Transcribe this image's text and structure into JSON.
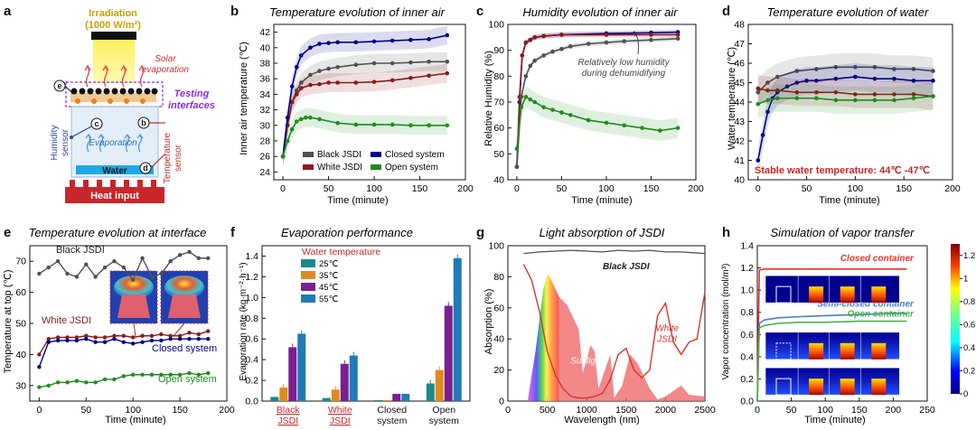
{
  "colors": {
    "black": "#505050",
    "red": "#8b1a1a",
    "blue": "#00008b",
    "green": "#1e8c1e",
    "orange": "#e8801e",
    "mag": "#d8332b",
    "purpleLabel": "#8a2be2",
    "c25": "#1a8a8a",
    "c35": "#e08a1e",
    "c45": "#7b1f8f",
    "c55": "#1f7ab8"
  },
  "panel_letters": [
    "a",
    "b",
    "c",
    "d",
    "e",
    "f",
    "g",
    "h"
  ],
  "panel_a": {
    "irradiation": "Irradiation",
    "irradiation_value": "(1000 W/m²)",
    "solar": "Solar",
    "evaporation_label": "evaporation",
    "testing": "Testing",
    "interfaces": "interfaces",
    "humidity": "Humidity",
    "sensor": "sensor",
    "temperature": "Temperature",
    "evaporation": "Evaporation",
    "water": "Water",
    "heat_input": "Heat input",
    "markers": [
      "e",
      "c",
      "b",
      "d"
    ]
  },
  "chart_data": [
    {
      "id": "b",
      "type": "line",
      "title": "Temperature evolution of inner air",
      "xlabel": "Time (minute)",
      "ylabel": "Inner air temperature (℃)",
      "xlim": [
        -10,
        200
      ],
      "ylim": [
        23,
        43
      ],
      "xticks": [
        0,
        50,
        100,
        150,
        200
      ],
      "yticks": [
        24,
        26,
        28,
        30,
        32,
        34,
        36,
        38,
        40,
        42
      ],
      "legend": [
        "Black JSDI",
        "White JSDI",
        "Closed system",
        "Open system"
      ],
      "series": [
        {
          "name": "Black JSDI",
          "color": "black",
          "x": [
            0,
            5,
            10,
            15,
            20,
            30,
            40,
            50,
            60,
            80,
            100,
            120,
            140,
            160,
            180
          ],
          "y": [
            26,
            30,
            33,
            34.5,
            35.5,
            36.5,
            37,
            37.3,
            37.5,
            37.8,
            38,
            38,
            38.1,
            38.2,
            38.2
          ]
        },
        {
          "name": "White JSDI",
          "color": "red",
          "x": [
            0,
            5,
            10,
            15,
            20,
            30,
            40,
            50,
            60,
            80,
            100,
            120,
            140,
            160,
            180
          ],
          "y": [
            26,
            30,
            33,
            34,
            34.8,
            35.2,
            35.3,
            35.5,
            35.5,
            35.5,
            35.6,
            35.8,
            36.1,
            36.4,
            36.7
          ]
        },
        {
          "name": "Closed system",
          "color": "blue",
          "x": [
            0,
            5,
            10,
            15,
            20,
            30,
            40,
            50,
            60,
            80,
            100,
            120,
            140,
            160,
            180
          ],
          "y": [
            26,
            31,
            35,
            37.5,
            39,
            40,
            40.5,
            40.6,
            40.7,
            40.7,
            40.8,
            40.9,
            41,
            41.1,
            41.6
          ]
        },
        {
          "name": "Open system",
          "color": "green",
          "x": [
            0,
            5,
            10,
            15,
            20,
            25,
            30,
            40,
            60,
            80,
            100,
            120,
            140,
            160,
            180
          ],
          "y": [
            26,
            28,
            29.5,
            30.5,
            30.8,
            31,
            31,
            30.8,
            30.3,
            30.1,
            30.1,
            30.1,
            30,
            30,
            30
          ]
        }
      ]
    },
    {
      "id": "c",
      "type": "line",
      "title": "Humidity evolution of inner air",
      "xlabel": "Time (minute)",
      "ylabel": "Relative Humidity (%)",
      "xlim": [
        -10,
        200
      ],
      "ylim": [
        40,
        100
      ],
      "xticks": [
        0,
        50,
        100,
        150,
        200
      ],
      "yticks": [
        40,
        50,
        60,
        70,
        80,
        90,
        100
      ],
      "annotation": [
        "Relatively low humidity",
        "during dehumidifying"
      ],
      "series": [
        {
          "name": "Closed system",
          "color": "blue",
          "x": [
            0,
            3,
            6,
            10,
            15,
            20,
            30,
            50,
            100,
            150,
            180
          ],
          "y": [
            45,
            70,
            88,
            93,
            94,
            95,
            95.5,
            96,
            96.5,
            96.8,
            97
          ]
        },
        {
          "name": "White JSDI",
          "color": "red",
          "x": [
            0,
            3,
            6,
            10,
            15,
            20,
            30,
            50,
            100,
            150,
            180
          ],
          "y": [
            45,
            72,
            88,
            93,
            94,
            95,
            95.5,
            96,
            96,
            96,
            96
          ]
        },
        {
          "name": "Black JSDI",
          "color": "black",
          "x": [
            0,
            5,
            10,
            15,
            20,
            30,
            40,
            50,
            60,
            80,
            100,
            120,
            150,
            180
          ],
          "y": [
            45,
            72,
            80,
            84,
            86,
            88,
            89.5,
            90.5,
            91.5,
            92.5,
            93,
            93.5,
            94,
            94.5
          ]
        },
        {
          "name": "Open system",
          "color": "green",
          "x": [
            0,
            5,
            10,
            15,
            20,
            30,
            40,
            50,
            60,
            80,
            100,
            120,
            140,
            160,
            180
          ],
          "y": [
            52,
            68,
            72,
            71,
            70,
            68,
            67,
            66,
            65,
            63,
            62,
            61,
            60,
            59,
            60
          ]
        }
      ]
    },
    {
      "id": "d",
      "type": "line",
      "title": "Temperature evolution of water",
      "xlabel": "Time (minute)",
      "ylabel": "Water temperature (℃)",
      "xlim": [
        -10,
        200
      ],
      "ylim": [
        40,
        48
      ],
      "xticks": [
        0,
        50,
        100,
        150,
        200
      ],
      "yticks": [
        40,
        41,
        42,
        43,
        44,
        45,
        46,
        47,
        48
      ],
      "note": "Stable water temperature: 44℃ -47℃",
      "series": [
        {
          "name": "Black JSDI",
          "color": "black",
          "x": [
            0,
            10,
            20,
            40,
            60,
            80,
            100,
            120,
            140,
            160,
            180
          ],
          "y": [
            44.5,
            45,
            45.3,
            45.6,
            45.7,
            45.8,
            45.8,
            45.8,
            45.7,
            45.7,
            45.6
          ]
        },
        {
          "name": "Closed system",
          "color": "blue",
          "x": [
            0,
            5,
            10,
            15,
            20,
            30,
            40,
            50,
            60,
            80,
            100,
            120,
            140,
            160,
            180
          ],
          "y": [
            41,
            42.3,
            43.5,
            44.2,
            44.5,
            44.8,
            45,
            45.1,
            45.1,
            45.2,
            45.3,
            45.2,
            45.2,
            45.1,
            45.1
          ]
        },
        {
          "name": "White JSDI",
          "color": "red",
          "x": [
            0,
            10,
            20,
            40,
            60,
            80,
            100,
            120,
            140,
            160,
            180
          ],
          "y": [
            44.7,
            44.6,
            44.6,
            44.5,
            44.5,
            44.5,
            44.4,
            44.4,
            44.4,
            44.4,
            44.3
          ]
        },
        {
          "name": "Open system",
          "color": "green",
          "x": [
            0,
            10,
            20,
            40,
            60,
            80,
            100,
            120,
            140,
            160,
            180
          ],
          "y": [
            43.9,
            44.1,
            44.2,
            44.2,
            44.2,
            44.1,
            44.1,
            44.1,
            44.1,
            44.2,
            44.3
          ]
        }
      ]
    },
    {
      "id": "e",
      "type": "line",
      "title": "Temperature evolution at interface",
      "xlabel": "Time (minute)",
      "ylabel": "Temperature at top (℃)",
      "xlim": [
        -10,
        200
      ],
      "ylim": [
        25,
        75
      ],
      "xticks": [
        0,
        50,
        100,
        150,
        200
      ],
      "yticks": [
        30,
        40,
        50,
        60,
        70
      ],
      "labels": [
        "Black JSDI",
        "White JSDI",
        "Closed system",
        "Open system"
      ],
      "series": [
        {
          "name": "Black JSDI",
          "color": "black",
          "x": [
            0,
            10,
            20,
            30,
            40,
            50,
            60,
            70,
            80,
            90,
            100,
            110,
            120,
            130,
            140,
            150,
            160,
            170,
            180
          ],
          "y": [
            66,
            68,
            70,
            66,
            65,
            69,
            65,
            68,
            70,
            68,
            64,
            71,
            65,
            66,
            70,
            72,
            73,
            71,
            71
          ]
        },
        {
          "name": "White JSDI",
          "color": "red",
          "x": [
            0,
            10,
            20,
            30,
            40,
            50,
            60,
            70,
            80,
            90,
            100,
            110,
            120,
            130,
            140,
            150,
            160,
            170,
            180
          ],
          "y": [
            40,
            45,
            45.5,
            45.5,
            45.5,
            46,
            45.5,
            45.5,
            46,
            46,
            45.5,
            46,
            46,
            46.5,
            46,
            46,
            47,
            46.5,
            47.5
          ]
        },
        {
          "name": "Closed system",
          "color": "blue",
          "x": [
            0,
            10,
            20,
            30,
            40,
            50,
            60,
            70,
            80,
            90,
            100,
            110,
            120,
            130,
            140,
            150,
            160,
            170,
            180
          ],
          "y": [
            36,
            44,
            44.5,
            44.5,
            44.5,
            45,
            44,
            44,
            45,
            44,
            43.5,
            44,
            44.5,
            44.5,
            45,
            45,
            45,
            45,
            45
          ]
        },
        {
          "name": "Open system",
          "color": "green",
          "x": [
            0,
            10,
            20,
            30,
            40,
            50,
            60,
            70,
            80,
            90,
            100,
            110,
            120,
            130,
            140,
            150,
            160,
            170,
            180
          ],
          "y": [
            29.5,
            30,
            31,
            31,
            31.5,
            31,
            31,
            32,
            32,
            33,
            33.5,
            33.5,
            33.5,
            33.5,
            33.5,
            33.5,
            34,
            33.5,
            34
          ]
        }
      ]
    },
    {
      "id": "f",
      "type": "bar",
      "title": "Evaporation performance",
      "xlabel": "",
      "ylabel": "Evaporation rate (kg·m⁻²·h⁻¹)",
      "ylim": [
        0,
        1.5
      ],
      "yticks": [
        0,
        0.2,
        0.4,
        0.6,
        0.8,
        1.0,
        1.2,
        1.4
      ],
      "categories": [
        "Black JSDI",
        "White JSDI",
        "Closed system",
        "Open system"
      ],
      "legend_title": "Water temperature",
      "series": [
        {
          "name": "25℃",
          "color": "c25",
          "values": [
            0.04,
            0.03,
            0.01,
            0.17
          ]
        },
        {
          "name": "35℃",
          "color": "c35",
          "values": [
            0.13,
            0.11,
            0.01,
            0.3
          ]
        },
        {
          "name": "45℃",
          "color": "c45",
          "values": [
            0.52,
            0.36,
            0.07,
            0.92
          ]
        },
        {
          "name": "55℃",
          "color": "c55",
          "values": [
            0.65,
            0.44,
            0.07,
            1.38
          ]
        }
      ]
    },
    {
      "id": "g",
      "type": "line",
      "title": "Light absorption of JSDI",
      "xlabel": "Wavelength (nm)",
      "ylabel": "Absorption (%)",
      "xlim": [
        0,
        2500
      ],
      "ylim": [
        0,
        100
      ],
      "xticks": [
        0,
        500,
        1000,
        1500,
        2000,
        2500
      ],
      "yticks": [
        0,
        20,
        40,
        60,
        80,
        100
      ],
      "labels": [
        "Black JSDI",
        "White JSDI",
        "Sunlight"
      ],
      "series": [
        {
          "name": "Black JSDI",
          "color": "black",
          "x": [
            200,
            400,
            600,
            800,
            1000,
            1200,
            1400,
            1600,
            1800,
            2000,
            2200,
            2500
          ],
          "y": [
            95,
            96,
            96.5,
            97,
            96.5,
            96,
            97,
            96.5,
            97,
            96,
            96,
            95
          ]
        },
        {
          "name": "White JSDI",
          "color": "mag",
          "x": [
            200,
            300,
            400,
            500,
            600,
            700,
            800,
            900,
            1000,
            1100,
            1200,
            1300,
            1400,
            1500,
            1600,
            1700,
            1800,
            1900,
            2000,
            2100,
            2200,
            2300,
            2400,
            2500
          ],
          "y": [
            88,
            78,
            58,
            32,
            17,
            8,
            3,
            2,
            2,
            3,
            5,
            14,
            30,
            34,
            20,
            15,
            20,
            55,
            63,
            38,
            30,
            38,
            40,
            70
          ]
        },
        {
          "name": "Sunlight",
          "color": "#ef6a6a",
          "x": [
            250,
            350,
            450,
            500,
            550,
            650,
            750,
            900,
            950,
            1050,
            1100,
            1150,
            1300,
            1350,
            1450,
            1550,
            1650,
            1800,
            1900,
            2000,
            2200,
            2300,
            2500
          ],
          "y": [
            0,
            32,
            72,
            82,
            78,
            67,
            62,
            46,
            18,
            36,
            32,
            8,
            30,
            2,
            10,
            30,
            24,
            8,
            1,
            3,
            10,
            4,
            3
          ]
        }
      ]
    },
    {
      "id": "h",
      "type": "line",
      "title": "Simulation of vapor transfer",
      "xlabel": "Time (minute)",
      "ylabel": "Vapor concentration (mol/m³)",
      "xlim": [
        0,
        250
      ],
      "ylim": [
        0,
        1.4
      ],
      "xticks": [
        0,
        50,
        100,
        150,
        200,
        250
      ],
      "yticks": [
        0,
        0.2,
        0.4,
        0.6,
        0.8,
        1.0,
        1.2,
        1.4
      ],
      "labels": [
        "Closed container",
        "Semi-closed container",
        "Open container"
      ],
      "colorbar_ticks": [
        0,
        0.2,
        0.4,
        0.6,
        0.8,
        1.0,
        1.2
      ],
      "series": [
        {
          "name": "Closed container",
          "color": "#e8332b",
          "x": [
            0,
            3,
            10,
            50,
            100,
            150,
            200,
            220
          ],
          "y": [
            0,
            1.18,
            1.19,
            1.19,
            1.19,
            1.19,
            1.19,
            1.19
          ]
        },
        {
          "name": "Semi-closed container",
          "color": "#4a7fc8",
          "x": [
            0,
            3,
            10,
            30,
            60,
            100,
            150,
            200,
            220
          ],
          "y": [
            0,
            0.7,
            0.73,
            0.75,
            0.76,
            0.77,
            0.78,
            0.79,
            0.79
          ]
        },
        {
          "name": "Open container",
          "color": "#4ab04a",
          "x": [
            0,
            3,
            10,
            30,
            60,
            100,
            150,
            200,
            220
          ],
          "y": [
            0,
            0.66,
            0.68,
            0.7,
            0.71,
            0.71,
            0.72,
            0.72,
            0.72
          ]
        }
      ]
    }
  ]
}
